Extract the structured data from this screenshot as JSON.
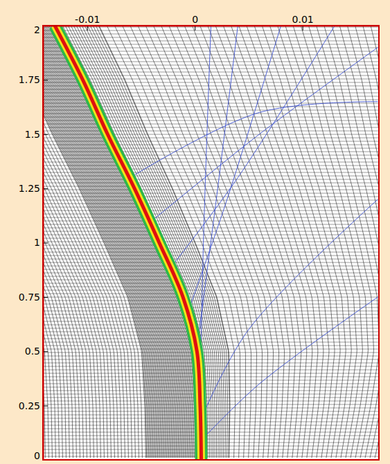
{
  "chart_data": {
    "type": "line",
    "xlim": [
      -0.0141,
      0.0171
    ],
    "ylim": [
      0,
      2
    ],
    "xticks": [
      -0.01,
      0,
      0.01
    ],
    "yticks": [
      0,
      0.25,
      0.5,
      0.75,
      1,
      1.25,
      1.5,
      1.75,
      2
    ],
    "series": [
      {
        "color": "#e01010",
        "x": [
          0.0006,
          0.0005,
          0.0002,
          -0.0011,
          -0.0033,
          -0.0056,
          -0.0081,
          -0.0104,
          -0.013
        ],
        "values": [
          0,
          0.25,
          0.5,
          0.75,
          1,
          1.25,
          1.5,
          1.75,
          2
        ]
      },
      {
        "color": "#3a4fd0",
        "x": [
          0.0005,
          0.0008,
          0.0015
        ],
        "values": [
          0.3,
          1.0,
          2.0
        ]
      },
      {
        "color": "#3a4fd0",
        "x": [
          0.0003,
          0.002,
          0.004
        ],
        "values": [
          0.55,
          1.2,
          2.0
        ]
      },
      {
        "color": "#3a4fd0",
        "x": [
          -0.0005,
          0.003,
          0.008
        ],
        "values": [
          0.7,
          1.2,
          2.0
        ]
      },
      {
        "color": "#3a4fd0",
        "x": [
          -0.002,
          0.004,
          0.013
        ],
        "values": [
          0.9,
          1.3,
          2.0
        ]
      },
      {
        "color": "#3a4fd0",
        "x": [
          -0.004,
          0.006,
          0.017
        ],
        "values": [
          1.1,
          1.5,
          1.9
        ]
      },
      {
        "color": "#3a4fd0",
        "x": [
          -0.006,
          0.006,
          0.017
        ],
        "values": [
          1.3,
          1.6,
          1.65
        ]
      },
      {
        "color": "#3a4fd0",
        "x": [
          0.0008,
          0.006,
          0.017
        ],
        "values": [
          0.1,
          0.35,
          0.75
        ]
      },
      {
        "color": "#3a4fd0",
        "x": [
          0.0007,
          0.005,
          0.017
        ],
        "values": [
          0.2,
          0.6,
          1.2
        ]
      }
    ]
  }
}
